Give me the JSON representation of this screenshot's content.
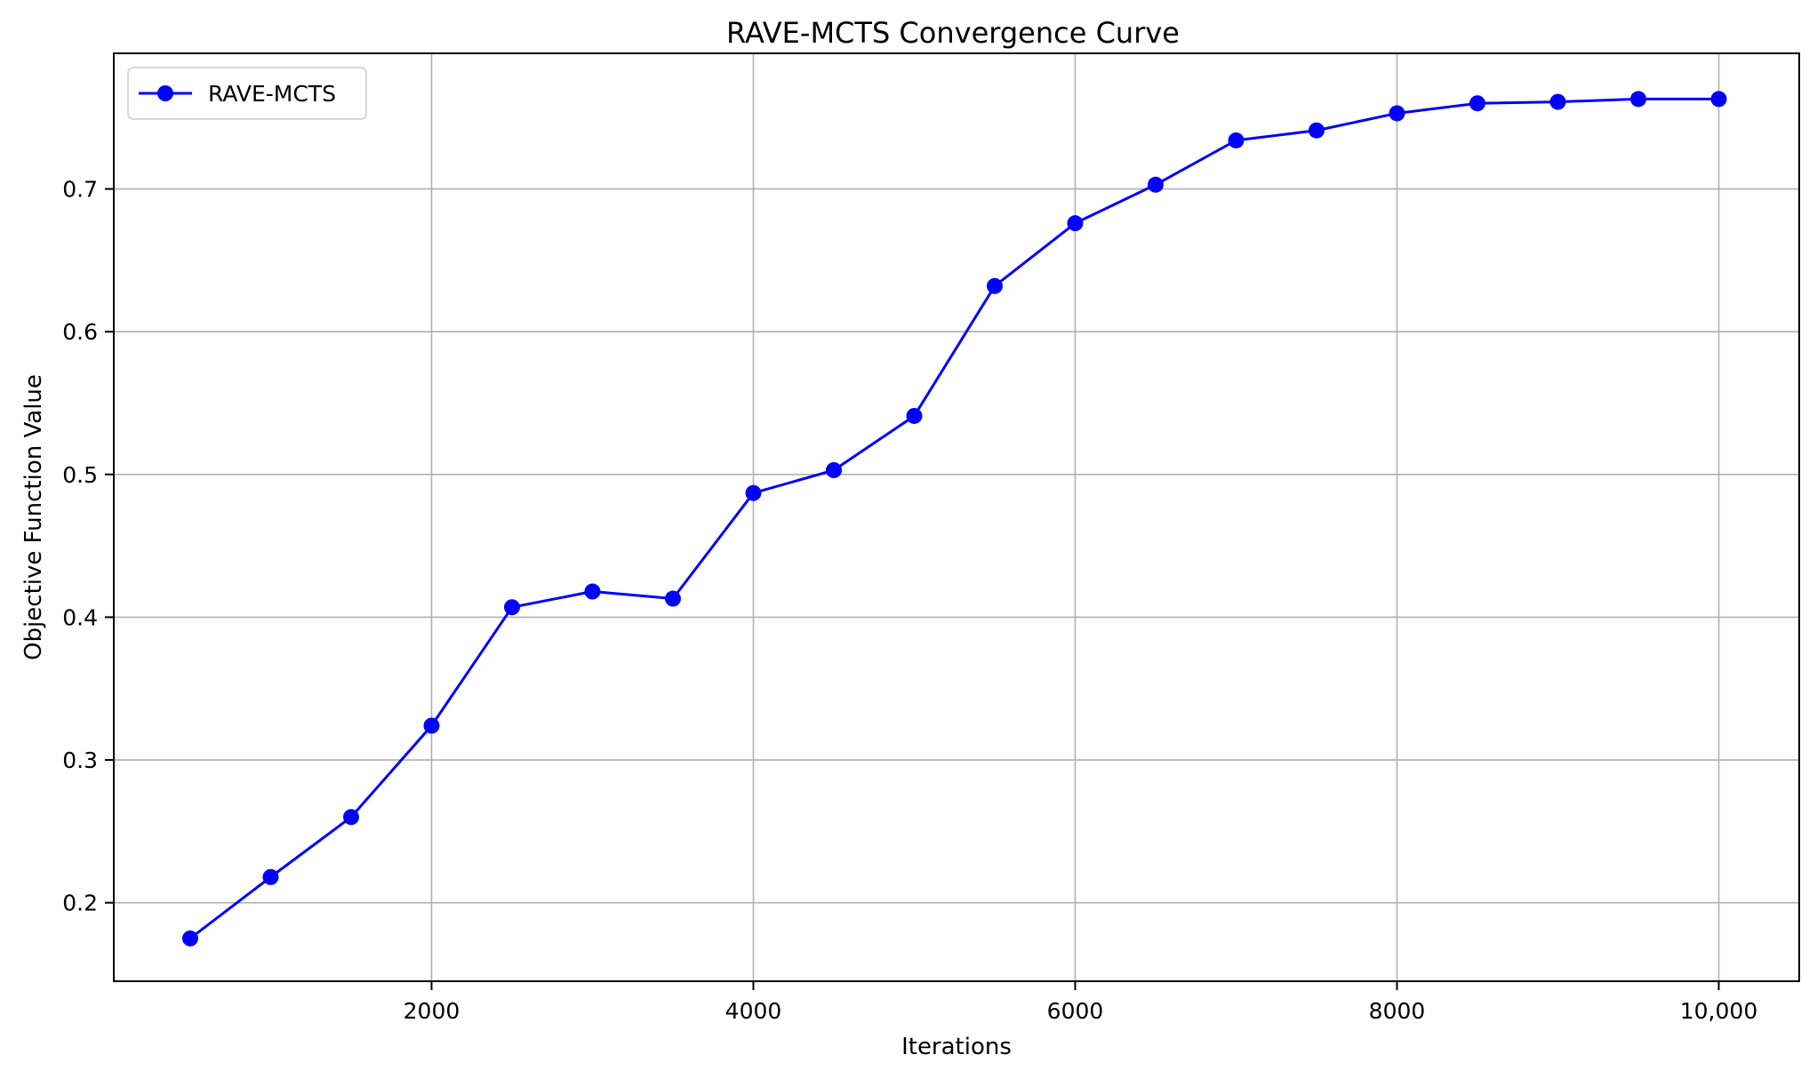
{
  "chart_data": {
    "type": "line",
    "title": "RAVE-MCTS Convergence Curve",
    "xlabel": "Iterations",
    "ylabel": "Objective Function Value",
    "xlim": [
      25,
      10500
    ],
    "ylim": [
      0.145,
      0.795
    ],
    "x_ticks": [
      2000,
      4000,
      6000,
      8000,
      10000
    ],
    "x_tick_labels": [
      "2000",
      "4000",
      "6000",
      "8000",
      "10,000"
    ],
    "y_ticks": [
      0.2,
      0.3,
      0.4,
      0.5,
      0.6,
      0.7
    ],
    "y_tick_labels": [
      "0.2",
      "0.3",
      "0.4",
      "0.5",
      "0.6",
      "0.7"
    ],
    "grid": true,
    "legend_position": "top-left",
    "series": [
      {
        "name": "RAVE-MCTS",
        "color": "#0000ff",
        "marker": "circle",
        "x": [
          500,
          1000,
          1500,
          2000,
          2500,
          3000,
          3500,
          4000,
          4500,
          5000,
          5500,
          6000,
          6500,
          7000,
          7500,
          8000,
          8500,
          9000,
          9500,
          10000
        ],
        "y": [
          0.175,
          0.218,
          0.26,
          0.324,
          0.407,
          0.418,
          0.413,
          0.487,
          0.503,
          0.541,
          0.632,
          0.676,
          0.703,
          0.734,
          0.741,
          0.753,
          0.76,
          0.761,
          0.763,
          0.763
        ]
      }
    ]
  }
}
